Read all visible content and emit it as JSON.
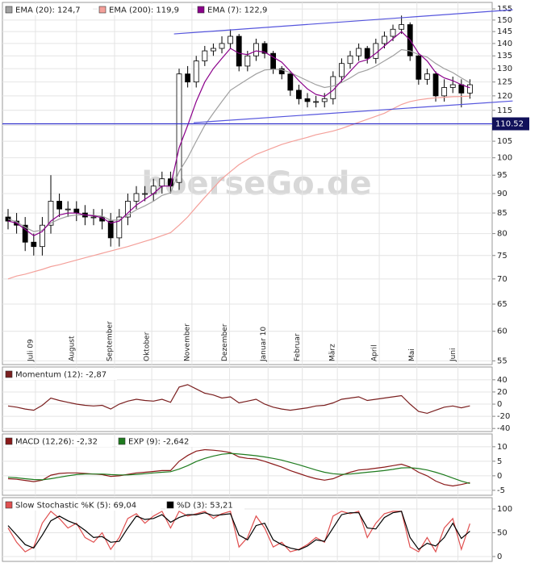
{
  "chart_data": [
    {
      "type": "candlestick",
      "log_scale": true,
      "grid": true,
      "watermark": "boerseGo.de",
      "x": [
        0,
        1,
        2,
        3,
        4,
        5,
        6,
        7,
        8,
        9,
        10,
        11,
        12,
        13,
        14,
        15,
        16,
        17,
        18,
        19,
        20,
        21,
        22,
        23,
        24,
        25,
        26,
        27,
        28,
        29,
        30,
        31,
        32,
        33,
        34,
        35,
        36,
        37,
        38,
        39,
        40,
        41,
        42,
        43,
        44,
        45,
        46,
        47,
        48,
        49,
        50,
        51,
        52,
        53,
        54
      ],
      "open": [
        84,
        83,
        82,
        78,
        77,
        82,
        88,
        86,
        86,
        85,
        84,
        84,
        83,
        79,
        84,
        88,
        90,
        90,
        92,
        94,
        93,
        128,
        125,
        133,
        137,
        138,
        140,
        143,
        131,
        135,
        140,
        136,
        130,
        128,
        122,
        119,
        118,
        118,
        119,
        127,
        132,
        135,
        138,
        134,
        140,
        143,
        146,
        148,
        135,
        126,
        128,
        120,
        123,
        124,
        121
      ],
      "high": [
        86,
        85,
        84,
        80,
        84,
        95,
        90,
        88,
        88,
        87,
        86,
        86,
        85,
        86,
        90,
        92,
        92,
        94,
        96,
        96,
        130,
        131,
        135,
        139,
        140,
        143,
        146,
        144,
        137,
        142,
        141,
        137,
        131,
        129,
        124,
        121,
        120,
        121,
        129,
        134,
        137,
        140,
        139,
        142,
        145,
        148,
        152,
        149,
        136,
        130,
        129,
        126,
        127,
        126,
        126
      ],
      "low": [
        81,
        80,
        76,
        75,
        75,
        80,
        84,
        84,
        83,
        82,
        82,
        81,
        77,
        77,
        82,
        86,
        88,
        88,
        90,
        90,
        91,
        123,
        123,
        131,
        135,
        136,
        138,
        129,
        129,
        133,
        134,
        128,
        126,
        120,
        117,
        116,
        116,
        116,
        117,
        125,
        130,
        133,
        132,
        132,
        138,
        141,
        144,
        133,
        124,
        124,
        118,
        118,
        121,
        116,
        119
      ],
      "close": [
        83,
        82,
        78,
        77,
        82,
        88,
        86,
        86,
        85,
        84,
        84,
        83,
        79,
        84,
        88,
        90,
        90,
        92,
        94,
        92,
        128,
        125,
        133,
        137,
        138,
        140,
        143,
        131,
        135,
        140,
        136,
        130,
        128,
        122,
        119,
        118,
        118,
        119,
        127,
        132,
        135,
        138,
        134,
        140,
        143,
        146,
        148,
        135,
        126,
        128,
        120,
        123,
        124,
        121,
        124
      ],
      "series": [
        {
          "name": "EMA (20): 124,7",
          "color": "#a0a0a0",
          "values": [
            83.5,
            82.8,
            81.5,
            80.5,
            80.8,
            82.5,
            83.5,
            84.2,
            84.5,
            84.5,
            84.4,
            84.2,
            83.2,
            83.3,
            84.5,
            85.8,
            86.8,
            88,
            89.5,
            90.2,
            96,
            100,
            105,
            110,
            114,
            118,
            122,
            124,
            126,
            128,
            129.5,
            129.8,
            129.6,
            128.5,
            127,
            125.5,
            124,
            123,
            123.5,
            124.8,
            126.5,
            128.5,
            129.5,
            131,
            133,
            135,
            137.5,
            137,
            135.5,
            134.5,
            132,
            130,
            128.5,
            126.5,
            124.7
          ]
        },
        {
          "name": "EMA (200): 119,9",
          "color": "#f4a09a",
          "values": [
            70,
            70.6,
            71,
            71.5,
            72,
            72.6,
            73,
            73.5,
            74,
            74.5,
            75,
            75.5,
            76,
            76.5,
            77,
            77.6,
            78.2,
            78.8,
            79.5,
            80.2,
            82,
            84,
            86.5,
            89,
            91.5,
            94,
            96,
            98,
            99.5,
            101,
            102,
            103,
            104,
            104.8,
            105.5,
            106.2,
            107,
            107.6,
            108.2,
            109,
            110,
            111,
            112,
            113,
            114,
            115.5,
            117,
            118,
            118.6,
            119,
            119.3,
            119.5,
            119.7,
            119.8,
            119.9
          ]
        },
        {
          "name": "EMA (7): 122,9",
          "color": "#8b008b",
          "values": [
            83,
            82.5,
            81,
            79.5,
            80.5,
            83,
            84.5,
            85,
            85,
            84.5,
            84.3,
            83.8,
            82.5,
            83,
            85,
            87,
            88.5,
            90,
            92,
            92,
            103,
            110,
            118,
            125,
            130,
            134,
            138,
            136,
            135.5,
            137,
            136.5,
            134.5,
            132.5,
            129,
            125.5,
            122.5,
            120.5,
            119.8,
            122,
            125.5,
            129,
            132.5,
            133.5,
            136,
            139,
            142,
            145,
            141.5,
            136,
            133,
            128.5,
            126.5,
            125.5,
            124,
            122.9
          ]
        }
      ],
      "xlim": [
        -0.66,
        56.6
      ],
      "xticks": [
        {
          "value": 3.2,
          "label": "Juli 09"
        },
        {
          "value": 8.0,
          "label": "August"
        },
        {
          "value": 12.45,
          "label": "September"
        },
        {
          "value": 16.8,
          "label": "Oktober"
        },
        {
          "value": 21.5,
          "label": "November"
        },
        {
          "value": 25.9,
          "label": "Dezember"
        },
        {
          "value": 30.4,
          "label": "Januar 10"
        },
        {
          "value": 34.4,
          "label": "Februar"
        },
        {
          "value": 38.5,
          "label": "März"
        },
        {
          "value": 43.4,
          "label": "April"
        },
        {
          "value": 47.8,
          "label": "Mai"
        },
        {
          "value": 52.6,
          "label": "Juni"
        }
      ],
      "ylim": [
        54.4,
        158
      ],
      "yticks": [
        55,
        60,
        65,
        70,
        75,
        80,
        85,
        90,
        95,
        100,
        105,
        110,
        115,
        120,
        125,
        130,
        135,
        140,
        145,
        150,
        155
      ],
      "hline": 110.52,
      "trendlines": [
        {
          "x": [
            19.4,
            59
          ],
          "y": [
            144,
            154.6
          ]
        },
        {
          "x": [
            21.7,
            59
          ],
          "y": [
            110.9,
            118.2
          ]
        }
      ]
    },
    {
      "type": "line",
      "grid": true,
      "series": [
        {
          "name": "Momentum (12): -2,87",
          "color": "#7a1f1f",
          "values": [
            -3,
            -5,
            -8,
            -10,
            -2,
            10,
            6,
            3,
            0,
            -2,
            -3,
            -2,
            -8,
            0,
            5,
            8,
            6,
            5,
            8,
            3,
            28,
            32,
            25,
            18,
            15,
            10,
            12,
            2,
            5,
            8,
            0,
            -5,
            -8,
            -10,
            -8,
            -6,
            -3,
            -2,
            2,
            8,
            10,
            12,
            6,
            8,
            10,
            12,
            14,
            0,
            -12,
            -15,
            -10,
            -5,
            -3,
            -6,
            -2.87
          ]
        }
      ],
      "ylim": [
        -45,
        61
      ],
      "yticks": [
        -40,
        -20,
        0,
        20,
        40
      ]
    },
    {
      "type": "line",
      "grid": true,
      "series": [
        {
          "name": "MACD (12,26): -2,32",
          "color": "#8b1a1a",
          "values": [
            -1,
            -1.2,
            -1.6,
            -2,
            -1.5,
            0.2,
            0.8,
            1,
            1,
            0.8,
            0.6,
            0.4,
            -0.2,
            0,
            0.5,
            1,
            1.2,
            1.5,
            1.8,
            1.8,
            5,
            7,
            8.5,
            9,
            8.8,
            8.5,
            8,
            6.5,
            6,
            5.8,
            5,
            4,
            3,
            1.8,
            0.8,
            -0.2,
            -1,
            -1.5,
            -1,
            0.2,
            1.2,
            2,
            2.2,
            2.6,
            3,
            3.5,
            4,
            3,
            1.2,
            0,
            -1.8,
            -3,
            -3.5,
            -3,
            -2.32
          ]
        },
        {
          "name": "EXP (9): -2,642",
          "color": "#1e7b1e",
          "values": [
            -0.5,
            -0.7,
            -1,
            -1.3,
            -1.4,
            -1,
            -0.5,
            0,
            0.4,
            0.6,
            0.6,
            0.6,
            0.4,
            0.3,
            0.3,
            0.5,
            0.7,
            1,
            1.2,
            1.4,
            2.3,
            3.5,
            4.9,
            6,
            6.8,
            7.4,
            7.7,
            7.5,
            7.2,
            6.9,
            6.5,
            6,
            5.4,
            4.6,
            3.8,
            2.9,
            2,
            1.2,
            0.7,
            0.5,
            0.6,
            0.9,
            1.2,
            1.5,
            1.8,
            2.2,
            2.7,
            2.8,
            2.5,
            2,
            1.2,
            0.3,
            -0.8,
            -1.8,
            -2.642
          ]
        }
      ],
      "ylim": [
        -6.7,
        14.4
      ],
      "yticks": [
        -5,
        0,
        5,
        10
      ]
    },
    {
      "type": "line",
      "grid": true,
      "series": [
        {
          "name": "Slow Stochastic %K (5): 69,04",
          "color": "#e05050",
          "values": [
            60,
            30,
            10,
            20,
            70,
            95,
            80,
            60,
            70,
            40,
            30,
            50,
            15,
            40,
            80,
            90,
            70,
            85,
            95,
            60,
            95,
            85,
            90,
            95,
            80,
            90,
            95,
            20,
            40,
            85,
            60,
            20,
            30,
            10,
            15,
            25,
            40,
            30,
            85,
            95,
            90,
            95,
            40,
            70,
            90,
            95,
            95,
            20,
            10,
            40,
            10,
            60,
            80,
            15,
            69.04
          ]
        },
        {
          "name": "%D (3): 53,21",
          "color": "#000000",
          "values": [
            65,
            45,
            25,
            18,
            45,
            75,
            85,
            75,
            68,
            55,
            40,
            42,
            30,
            32,
            60,
            85,
            78,
            80,
            88,
            72,
            82,
            88,
            88,
            92,
            86,
            88,
            90,
            45,
            35,
            65,
            70,
            35,
            25,
            18,
            14,
            22,
            35,
            32,
            60,
            88,
            92,
            92,
            60,
            58,
            82,
            92,
            95,
            40,
            15,
            28,
            22,
            40,
            70,
            38,
            53.21
          ]
        }
      ],
      "ylim": [
        -10.2,
        123.7
      ],
      "yticks": [
        0,
        50,
        100
      ]
    }
  ]
}
